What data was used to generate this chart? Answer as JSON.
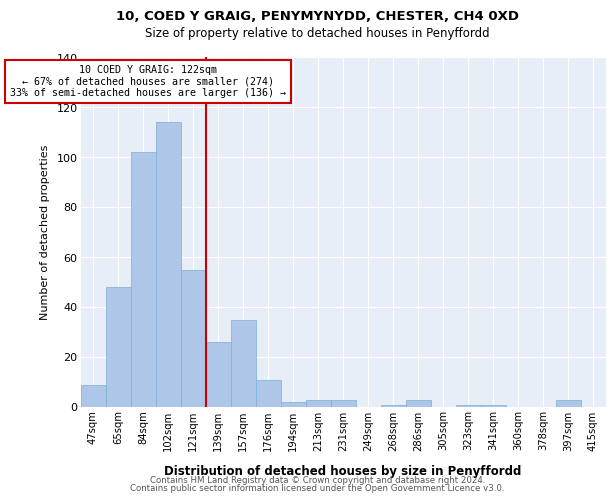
{
  "title1": "10, COED Y GRAIG, PENYMYNYDD, CHESTER, CH4 0XD",
  "title2": "Size of property relative to detached houses in Penyffordd",
  "xlabel": "Distribution of detached houses by size in Penyffordd",
  "ylabel": "Number of detached properties",
  "categories": [
    "47sqm",
    "65sqm",
    "84sqm",
    "102sqm",
    "121sqm",
    "139sqm",
    "157sqm",
    "176sqm",
    "194sqm",
    "213sqm",
    "231sqm",
    "249sqm",
    "268sqm",
    "286sqm",
    "305sqm",
    "323sqm",
    "341sqm",
    "360sqm",
    "378sqm",
    "397sqm",
    "415sqm"
  ],
  "values": [
    9,
    48,
    102,
    114,
    55,
    26,
    35,
    11,
    2,
    3,
    3,
    0,
    1,
    3,
    0,
    1,
    1,
    0,
    0,
    3,
    0
  ],
  "bar_color": "#aec6e8",
  "bar_edgecolor": "#7aafd4",
  "vline_x_index": 4.5,
  "annotation_title": "10 COED Y GRAIG: 122sqm",
  "annotation_line1": "← 67% of detached houses are smaller (274)",
  "annotation_line2": "33% of semi-detached houses are larger (136) →",
  "vline_color": "#cc0000",
  "annotation_box_edgecolor": "#cc0000",
  "ylim": [
    0,
    140
  ],
  "yticks": [
    0,
    20,
    40,
    60,
    80,
    100,
    120,
    140
  ],
  "bg_color": "#e8eef8",
  "grid_color": "#ffffff",
  "footer1": "Contains HM Land Registry data © Crown copyright and database right 2024.",
  "footer2": "Contains public sector information licensed under the Open Government Licence v3.0."
}
